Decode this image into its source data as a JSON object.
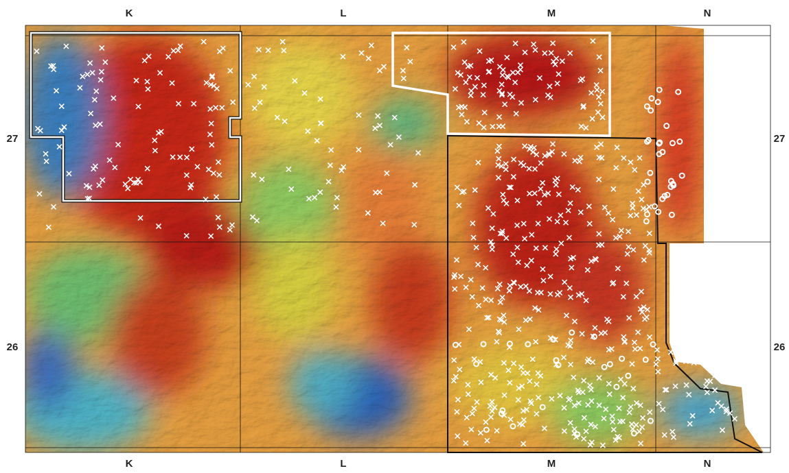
{
  "map": {
    "columns_top": [
      "K",
      "L",
      "M",
      "N"
    ],
    "columns_bottom": [
      "K",
      "L",
      "M",
      "N"
    ],
    "rows_left": [
      "27",
      "26"
    ],
    "rows_right": [
      "27",
      "26"
    ]
  }
}
